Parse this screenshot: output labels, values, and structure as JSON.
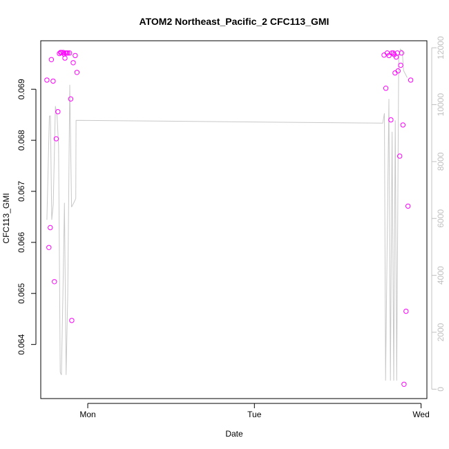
{
  "chart_data": {
    "type": "scatter",
    "title": "ATOM2 Northeast_Pacific_2 CFC113_GMI",
    "xlabel": "Date",
    "ylabel": "CFC113_GMI",
    "x_ticks": [
      {
        "label": "Mon",
        "value": 1.0
      },
      {
        "label": "Tue",
        "value": 2.0
      },
      {
        "label": "Wed",
        "value": 3.0
      }
    ],
    "x_range": [
      0.718,
      3.035
    ],
    "y_ticks": [
      0.064,
      0.065,
      0.066,
      0.067,
      0.068,
      0.069
    ],
    "y_range": [
      0.06294,
      0.06995
    ],
    "y2_ticks": [
      0,
      2000,
      4000,
      6000,
      8000,
      10000,
      12000
    ],
    "y2_range": [
      -331,
      12247
    ],
    "colors": {
      "points": "#ff00ff",
      "altitude_line": "#c8c8c8",
      "right_axis": "#c0c0c0",
      "axis": "#000000"
    },
    "series": [
      {
        "axis": "left",
        "style": "points",
        "points": [
          [
            0.755,
            0.06918
          ],
          [
            0.767,
            0.0659
          ],
          [
            0.775,
            0.06629
          ],
          [
            0.782,
            0.06958
          ],
          [
            0.792,
            0.06916
          ],
          [
            0.8,
            0.06523
          ],
          [
            0.811,
            0.06803
          ],
          [
            0.821,
            0.06856
          ],
          [
            0.83,
            0.0697
          ],
          [
            0.837,
            0.06972
          ],
          [
            0.843,
            0.06972
          ],
          [
            0.853,
            0.06972
          ],
          [
            0.858,
            0.06969
          ],
          [
            0.863,
            0.06961
          ],
          [
            0.868,
            0.06971
          ],
          [
            0.874,
            0.06971
          ],
          [
            0.88,
            0.06971
          ],
          [
            0.891,
            0.06971
          ],
          [
            0.898,
            0.06881
          ],
          [
            0.904,
            0.06447
          ],
          [
            0.913,
            0.06952
          ],
          [
            0.925,
            0.06966
          ],
          [
            0.935,
            0.06933
          ],
          [
            2.778,
            0.06967
          ],
          [
            2.789,
            0.06902
          ],
          [
            2.797,
            0.06971
          ],
          [
            2.808,
            0.06966
          ],
          [
            2.819,
            0.0684
          ],
          [
            2.825,
            0.06971
          ],
          [
            2.833,
            0.06971
          ],
          [
            2.839,
            0.06968
          ],
          [
            2.844,
            0.06932
          ],
          [
            2.851,
            0.06963
          ],
          [
            2.858,
            0.06971
          ],
          [
            2.862,
            0.06936
          ],
          [
            2.872,
            0.06769
          ],
          [
            2.878,
            0.06947
          ],
          [
            2.883,
            0.06971
          ],
          [
            2.891,
            0.0683
          ],
          [
            2.898,
            0.06322
          ],
          [
            2.91,
            0.06465
          ],
          [
            2.922,
            0.06671
          ],
          [
            2.938,
            0.06918
          ]
        ]
      },
      {
        "axis": "right",
        "style": "line",
        "points": [
          [
            0.755,
            5950
          ],
          [
            0.77,
            9600
          ],
          [
            0.776,
            9600
          ],
          [
            0.784,
            5950
          ],
          [
            0.793,
            6500
          ],
          [
            0.806,
            9950
          ],
          [
            0.816,
            9600
          ],
          [
            0.825,
            8550
          ],
          [
            0.835,
            600
          ],
          [
            0.842,
            500
          ],
          [
            0.851,
            3350
          ],
          [
            0.86,
            6550
          ],
          [
            0.87,
            500
          ],
          [
            0.88,
            3350
          ],
          [
            0.892,
            10700
          ],
          [
            0.903,
            6400
          ],
          [
            0.916,
            6550
          ],
          [
            0.928,
            6700
          ],
          [
            0.93,
            9450
          ],
          [
            2.77,
            9350
          ],
          [
            2.78,
            9700
          ],
          [
            2.787,
            300
          ],
          [
            2.797,
            5400
          ],
          [
            2.807,
            10200
          ],
          [
            2.816,
            300
          ],
          [
            2.826,
            9050
          ],
          [
            2.836,
            300
          ],
          [
            2.845,
            9450
          ],
          [
            2.854,
            300
          ],
          [
            2.866,
            11600
          ],
          [
            2.876,
            11950
          ],
          [
            2.887,
            11900
          ],
          [
            2.895,
            11200
          ],
          [
            2.917,
            10950
          ]
        ]
      }
    ]
  }
}
